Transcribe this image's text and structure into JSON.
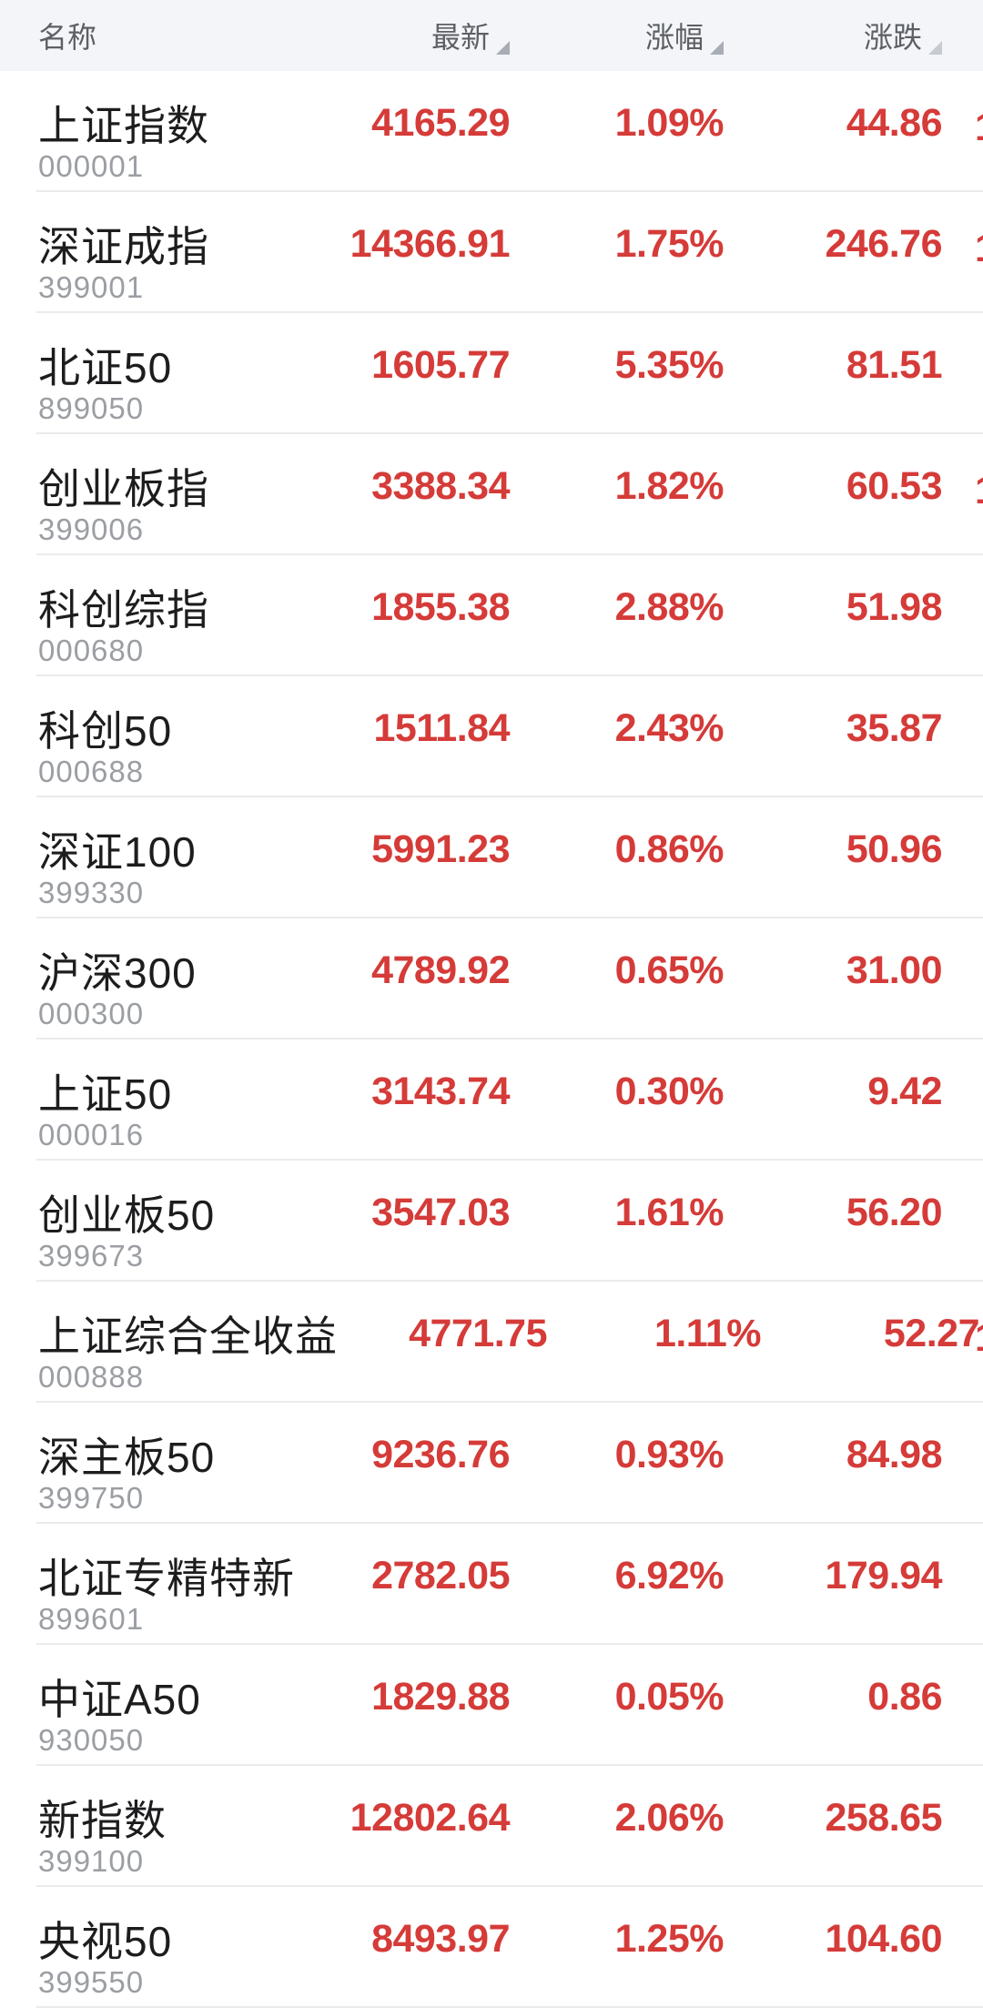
{
  "header": {
    "columns": [
      {
        "label": "名称",
        "sortable": false
      },
      {
        "label": "最新",
        "sortable": true
      },
      {
        "label": "涨幅",
        "sortable": true
      },
      {
        "label": "涨跌",
        "sortable": true
      }
    ]
  },
  "rows": [
    {
      "name": "上证指数",
      "code": "000001",
      "last": "4165.29",
      "pct": "1.09%",
      "chg": "44.86",
      "edge_partial": true
    },
    {
      "name": "深证成指",
      "code": "399001",
      "last": "14366.91",
      "pct": "1.75%",
      "chg": "246.76",
      "edge_partial": true
    },
    {
      "name": "北证50",
      "code": "899050",
      "last": "1605.77",
      "pct": "5.35%",
      "chg": "81.51",
      "edge_partial": false
    },
    {
      "name": "创业板指",
      "code": "399006",
      "last": "3388.34",
      "pct": "1.82%",
      "chg": "60.53",
      "edge_partial": true
    },
    {
      "name": "科创综指",
      "code": "000680",
      "last": "1855.38",
      "pct": "2.88%",
      "chg": "51.98",
      "edge_partial": false
    },
    {
      "name": "科创50",
      "code": "000688",
      "last": "1511.84",
      "pct": "2.43%",
      "chg": "35.87",
      "edge_partial": false
    },
    {
      "name": "深证100",
      "code": "399330",
      "last": "5991.23",
      "pct": "0.86%",
      "chg": "50.96",
      "edge_partial": false
    },
    {
      "name": "沪深300",
      "code": "000300",
      "last": "4789.92",
      "pct": "0.65%",
      "chg": "31.00",
      "edge_partial": false
    },
    {
      "name": "上证50",
      "code": "000016",
      "last": "3143.74",
      "pct": "0.30%",
      "chg": "9.42",
      "edge_partial": false
    },
    {
      "name": "创业板50",
      "code": "399673",
      "last": "3547.03",
      "pct": "1.61%",
      "chg": "56.20",
      "edge_partial": false
    },
    {
      "name": "上证综合全收益",
      "code": "000888",
      "last": "4771.75",
      "pct": "1.11%",
      "chg": "52.27",
      "edge_partial": true
    },
    {
      "name": "深主板50",
      "code": "399750",
      "last": "9236.76",
      "pct": "0.93%",
      "chg": "84.98",
      "edge_partial": false
    },
    {
      "name": "北证专精特新",
      "code": "899601",
      "last": "2782.05",
      "pct": "6.92%",
      "chg": "179.94",
      "edge_partial": false
    },
    {
      "name": "中证A50",
      "code": "930050",
      "last": "1829.88",
      "pct": "0.05%",
      "chg": "0.86",
      "edge_partial": false
    },
    {
      "name": "新指数",
      "code": "399100",
      "last": "12802.64",
      "pct": "2.06%",
      "chg": "258.65",
      "edge_partial": false
    },
    {
      "name": "央视50",
      "code": "399550",
      "last": "8493.97",
      "pct": "1.25%",
      "chg": "104.60",
      "edge_partial": false
    }
  ],
  "edge_sliver_text": "1",
  "colors": {
    "up_red": "#d53b38",
    "name_color": "#1d1d1f",
    "code_color": "#9b9ea3",
    "header_bg": "#f3f5f8",
    "header_text": "#5c6066",
    "divider": "#ebebeb"
  }
}
